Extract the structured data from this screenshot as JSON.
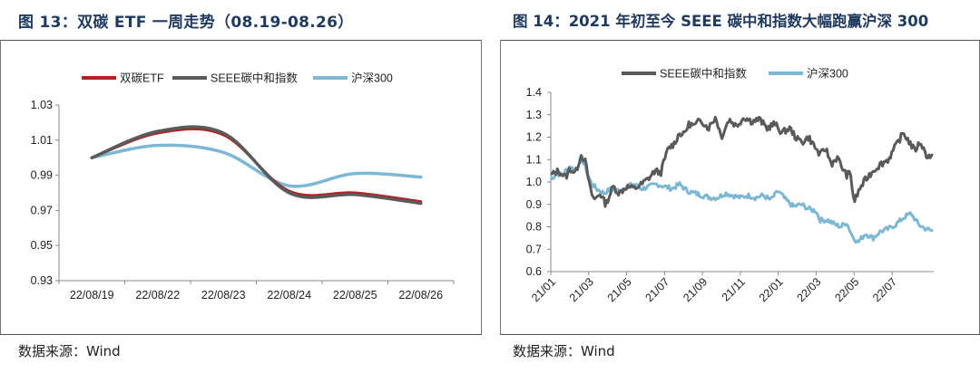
{
  "left": {
    "title": "图 13：双碳 ETF 一周走势（08.19-08.26）",
    "source": "数据来源：Wind"
  },
  "right": {
    "title": "图 14：2021 年初至今 SEEE 碳中和指数大幅跑赢沪深 300",
    "source": "数据来源：Wind"
  },
  "colors": {
    "dark_red": "#b22222",
    "gray": "#5a5a5a",
    "light_blue": "#7ab8d4",
    "axis": "#888888"
  },
  "chart_data": [
    {
      "type": "line",
      "title": "图 13：双碳 ETF 一周走势（08.19-08.26）",
      "categories": [
        "22/08/19",
        "22/08/22",
        "22/08/23",
        "22/08/24",
        "22/08/25",
        "22/08/26"
      ],
      "ylim": [
        0.93,
        1.03
      ],
      "yticks": [
        "1.03",
        "1.01",
        "0.99",
        "0.97",
        "0.95",
        "0.93"
      ],
      "ytick_values": [
        1.03,
        1.01,
        0.99,
        0.97,
        0.95,
        0.93
      ],
      "legend_position": "top",
      "grid": false,
      "series": [
        {
          "name": "双碳ETF",
          "color": "#b22222",
          "values": [
            1.0,
            1.014,
            1.013,
            0.981,
            0.98,
            0.975
          ]
        },
        {
          "name": "SEEE碳中和指数",
          "color": "#5a5a5a",
          "values": [
            1.0,
            1.015,
            1.014,
            0.98,
            0.979,
            0.974
          ]
        },
        {
          "name": "沪深300",
          "color": "#7ab8d4",
          "values": [
            1.0,
            1.007,
            1.003,
            0.984,
            0.991,
            0.989
          ]
        }
      ]
    },
    {
      "type": "line",
      "title": "图 14：2021 年初至今 SEEE 碳中和指数大幅跑赢沪深 300",
      "xticks": [
        "21/01",
        "21/03",
        "21/05",
        "21/07",
        "21/09",
        "21/11",
        "22/01",
        "22/03",
        "22/05",
        "22/07"
      ],
      "ylim": [
        0.6,
        1.4
      ],
      "yticks": [
        "1.4",
        "1.3",
        "1.2",
        "1.1",
        "1.0",
        "0.9",
        "0.8",
        "0.7",
        "0.6"
      ],
      "ytick_values": [
        1.4,
        1.3,
        1.2,
        1.1,
        1.0,
        0.9,
        0.8,
        0.7,
        0.6
      ],
      "legend_position": "top",
      "grid": false,
      "x_range_months": [
        0,
        20.2
      ],
      "series": [
        {
          "name": "SEEE碳中和指数",
          "color": "#5a5a5a",
          "x": [
            0,
            0.4,
            0.8,
            1.0,
            1.3,
            1.6,
            1.8,
            2.1,
            2.3,
            2.6,
            2.9,
            3.3,
            3.6,
            4.0,
            4.4,
            4.8,
            5.2,
            5.5,
            5.8,
            6.0,
            6.2,
            6.5,
            6.8,
            7.0,
            7.3,
            7.6,
            7.9,
            8.3,
            8.7,
            9.0,
            9.4,
            9.8,
            10.2,
            10.6,
            11.0,
            11.4,
            11.8,
            12.2,
            12.6,
            13.0,
            13.3,
            13.6,
            13.9,
            14.2,
            14.5,
            14.8,
            15.1,
            15.4,
            15.6,
            15.8,
            16.0,
            16.3,
            16.6,
            17.0,
            17.4,
            17.8,
            18.2,
            18.6,
            18.9,
            19.2,
            19.5,
            19.8,
            20.2
          ],
          "values": [
            1.03,
            1.05,
            1.02,
            1.06,
            1.04,
            1.12,
            1.1,
            0.96,
            0.92,
            0.95,
            0.9,
            0.98,
            0.95,
            0.98,
            0.97,
            0.99,
            1.02,
            1.05,
            1.04,
            1.1,
            1.15,
            1.17,
            1.22,
            1.21,
            1.26,
            1.25,
            1.28,
            1.24,
            1.29,
            1.2,
            1.28,
            1.25,
            1.29,
            1.27,
            1.28,
            1.24,
            1.26,
            1.22,
            1.24,
            1.19,
            1.18,
            1.2,
            1.16,
            1.12,
            1.15,
            1.08,
            1.11,
            1.06,
            1.03,
            1.04,
            0.91,
            0.97,
            1.01,
            1.05,
            1.08,
            1.1,
            1.16,
            1.22,
            1.18,
            1.14,
            1.18,
            1.12,
            1.11
          ]
        },
        {
          "name": "沪深300",
          "color": "#7ab8d4",
          "x": [
            0,
            0.3,
            0.6,
            1.0,
            1.3,
            1.6,
            1.8,
            2.1,
            2.4,
            2.8,
            3.2,
            3.6,
            4.0,
            4.4,
            4.8,
            5.2,
            5.6,
            6.0,
            6.4,
            6.8,
            7.2,
            7.6,
            8.0,
            8.4,
            8.8,
            9.2,
            9.6,
            10.0,
            10.4,
            10.8,
            11.2,
            11.6,
            12.0,
            12.4,
            12.8,
            13.2,
            13.6,
            14.0,
            14.2,
            14.6,
            15.0,
            15.3,
            15.6,
            15.9,
            16.2,
            16.6,
            17.0,
            17.4,
            17.8,
            18.2,
            18.6,
            19.0,
            19.4,
            19.8,
            20.2
          ],
          "values": [
            1.01,
            1.04,
            1.03,
            1.07,
            1.05,
            1.11,
            1.07,
            1.0,
            0.97,
            0.95,
            0.97,
            0.96,
            0.98,
            0.99,
            0.97,
            0.98,
            0.99,
            0.98,
            0.97,
            0.99,
            0.96,
            0.95,
            0.94,
            0.93,
            0.93,
            0.95,
            0.94,
            0.93,
            0.94,
            0.93,
            0.94,
            0.92,
            0.96,
            0.92,
            0.89,
            0.9,
            0.88,
            0.87,
            0.83,
            0.83,
            0.81,
            0.8,
            0.82,
            0.76,
            0.73,
            0.77,
            0.75,
            0.78,
            0.79,
            0.81,
            0.84,
            0.86,
            0.81,
            0.79,
            0.78
          ]
        }
      ]
    }
  ]
}
